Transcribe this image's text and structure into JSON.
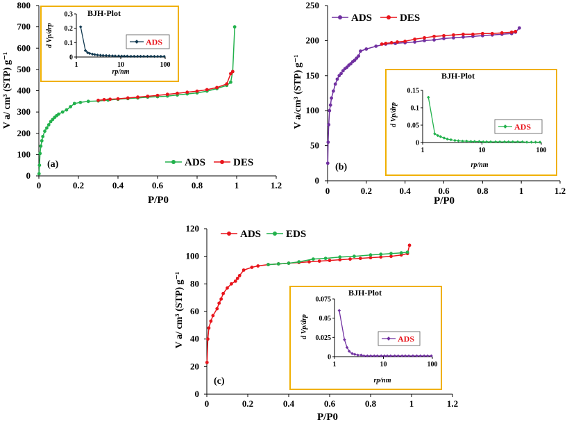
{
  "chart_data": [
    {
      "type": "line",
      "panel_label": "(a)",
      "xlabel": "P/P0",
      "ylabel": "V a/ cm³ (STP) g⁻¹",
      "xlim": [
        0,
        1.2
      ],
      "ylim": [
        0,
        800
      ],
      "xticks": [
        0,
        0.2,
        0.4,
        0.6,
        0.8,
        1,
        1.2
      ],
      "xtick_labels": [
        "0",
        "0.2",
        "0.4",
        "0.6",
        "0.8",
        "1",
        "1.2"
      ],
      "yticks": [
        0,
        100,
        200,
        300,
        400,
        500,
        600,
        700,
        800
      ],
      "legend_position": "bottom-right",
      "series": [
        {
          "name": "ADS",
          "color": "#22b14c",
          "marker": "circle",
          "x": [
            0.001,
            0.003,
            0.006,
            0.01,
            0.015,
            0.02,
            0.03,
            0.04,
            0.05,
            0.06,
            0.07,
            0.08,
            0.09,
            0.1,
            0.12,
            0.14,
            0.16,
            0.18,
            0.21,
            0.25,
            0.3,
            0.35,
            0.4,
            0.45,
            0.5,
            0.55,
            0.6,
            0.65,
            0.7,
            0.75,
            0.8,
            0.85,
            0.9,
            0.95,
            0.97,
            0.98,
            0.99
          ],
          "y": [
            10,
            50,
            105,
            140,
            165,
            185,
            210,
            225,
            240,
            255,
            265,
            275,
            283,
            290,
            300,
            310,
            325,
            340,
            345,
            350,
            352,
            356,
            360,
            363,
            366,
            370,
            372,
            375,
            380,
            385,
            390,
            398,
            410,
            425,
            440,
            490,
            700
          ]
        },
        {
          "name": "DES",
          "color": "#e8141b",
          "marker": "circle",
          "x": [
            0.3,
            0.33,
            0.36,
            0.4,
            0.45,
            0.5,
            0.55,
            0.6,
            0.65,
            0.7,
            0.75,
            0.8,
            0.85,
            0.9,
            0.95,
            0.97,
            0.98
          ],
          "y": [
            355,
            358,
            360,
            362,
            366,
            370,
            374,
            378,
            383,
            388,
            393,
            398,
            405,
            415,
            432,
            480,
            490
          ]
        }
      ],
      "inset": {
        "title": "BJH-Plot",
        "xlabel": "rp/nm",
        "ylabel": "d Vp/drp",
        "xscale": "log",
        "xlim": [
          1,
          100
        ],
        "xticks": [
          1,
          10,
          100
        ],
        "xtick_labels": [
          "1",
          "10",
          "100"
        ],
        "ylim": [
          0,
          0.3
        ],
        "yticks": [
          0,
          0.1,
          0.2,
          0.3
        ],
        "ytick_labels": [
          "0",
          "0.1",
          "0.2",
          "0.3"
        ],
        "series": [
          {
            "name": "ADS",
            "color": "#10384f",
            "x": [
              1.25,
              1.6,
              1.8,
              2,
              2.3,
              2.6,
              3,
              3.5,
              4,
              4.7,
              5.5,
              6.5,
              7.5,
              9,
              10.5,
              12,
              14,
              17,
              20,
              24,
              28,
              33,
              40,
              48,
              57,
              68,
              80,
              95
            ],
            "y": [
              0.21,
              0.045,
              0.03,
              0.025,
              0.02,
              0.017,
              0.014,
              0.012,
              0.011,
              0.01,
              0.009,
              0.008,
              0.007,
              0.007,
              0.006,
              0.006,
              0.006,
              0.005,
              0.005,
              0.005,
              0.005,
              0.005,
              0.005,
              0.005,
              0.004,
              0.004,
              0.004,
              0.004
            ]
          }
        ]
      }
    },
    {
      "type": "line",
      "panel_label": "(b)",
      "xlabel": "P/P0",
      "ylabel": "V a/cm³ (STP) g⁻¹",
      "xlim": [
        0,
        1.2
      ],
      "ylim": [
        0,
        250
      ],
      "xticks": [
        0,
        0.2,
        0.4,
        0.6,
        0.8,
        1,
        1.2
      ],
      "xtick_labels": [
        "0",
        "0.2",
        "0.4",
        "0.6",
        "0.8",
        "1",
        "1.2"
      ],
      "yticks": [
        0,
        50,
        100,
        150,
        200,
        250
      ],
      "legend_position": "top-left",
      "series": [
        {
          "name": "ADS",
          "color": "#7030a0",
          "marker": "circle",
          "x": [
            0.001,
            0.003,
            0.006,
            0.01,
            0.015,
            0.02,
            0.03,
            0.04,
            0.05,
            0.06,
            0.07,
            0.08,
            0.09,
            0.1,
            0.11,
            0.12,
            0.13,
            0.14,
            0.15,
            0.16,
            0.17,
            0.2,
            0.25,
            0.3,
            0.35,
            0.4,
            0.45,
            0.5,
            0.55,
            0.6,
            0.65,
            0.7,
            0.75,
            0.8,
            0.85,
            0.9,
            0.95,
            0.97,
            0.99
          ],
          "y": [
            25,
            55,
            80,
            100,
            108,
            118,
            128,
            138,
            145,
            150,
            153,
            157,
            160,
            162,
            165,
            167,
            170,
            172,
            175,
            178,
            185,
            188,
            192,
            195,
            196,
            197,
            198,
            200,
            201,
            203,
            204,
            205,
            206,
            207,
            208,
            209,
            210,
            212,
            218
          ]
        },
        {
          "name": "DES",
          "color": "#e8141b",
          "marker": "circle",
          "x": [
            0.28,
            0.3,
            0.33,
            0.36,
            0.4,
            0.45,
            0.5,
            0.55,
            0.6,
            0.65,
            0.7,
            0.75,
            0.8,
            0.85,
            0.9,
            0.95,
            0.97
          ],
          "y": [
            195,
            196,
            197,
            198,
            199,
            202,
            204,
            206,
            207,
            208,
            209,
            209,
            210,
            210,
            211,
            212,
            213
          ]
        }
      ],
      "inset": {
        "title": "BJH-Plot",
        "xlabel": "rp/nm",
        "ylabel": "d Vp/drp",
        "xscale": "log",
        "xlim": [
          1,
          100
        ],
        "xticks": [
          1,
          10,
          100
        ],
        "xtick_labels": [
          "1",
          "10",
          "100"
        ],
        "ylim": [
          0,
          0.15
        ],
        "yticks": [
          0,
          0.05,
          0.1,
          0.15
        ],
        "ytick_labels": [
          "0",
          "0.05",
          "0.1",
          "0.15"
        ],
        "series": [
          {
            "name": "ADS",
            "color": "#22b14c",
            "x": [
              1.25,
              1.6,
              1.8,
              2,
              2.3,
              2.6,
              3,
              3.5,
              4,
              4.7,
              5.5,
              6.5,
              7.5,
              9,
              10.5,
              12,
              14,
              17,
              20,
              24,
              28,
              33,
              40,
              48,
              57,
              68,
              80,
              95
            ],
            "y": [
              0.13,
              0.025,
              0.02,
              0.017,
              0.013,
              0.01,
              0.008,
              0.006,
              0.005,
              0.004,
              0.004,
              0.003,
              0.003,
              0.003,
              0.002,
              0.002,
              0.002,
              0.002,
              0.002,
              0.002,
              0.002,
              0.002,
              0.002,
              0.002,
              0.001,
              0.001,
              0.001,
              0.001
            ]
          }
        ]
      }
    },
    {
      "type": "line",
      "panel_label": "(c)",
      "xlabel": "P/P0",
      "ylabel": "V a/ cm³ (STP) g⁻¹",
      "xlim": [
        0,
        1.2
      ],
      "ylim": [
        0,
        120
      ],
      "xticks": [
        0,
        0.2,
        0.4,
        0.6,
        0.8,
        1,
        1.2
      ],
      "xtick_labels": [
        "0",
        "0.2",
        "0.4",
        "0.6",
        "0.8",
        "1",
        "1.2"
      ],
      "yticks": [
        0,
        20,
        40,
        60,
        80,
        100,
        120
      ],
      "legend_position": "top-left",
      "series": [
        {
          "name": "ADS",
          "color": "#e8141b",
          "marker": "circle",
          "x": [
            0.001,
            0.005,
            0.01,
            0.02,
            0.03,
            0.05,
            0.06,
            0.07,
            0.08,
            0.1,
            0.12,
            0.14,
            0.15,
            0.16,
            0.18,
            0.22,
            0.25,
            0.3,
            0.35,
            0.4,
            0.45,
            0.5,
            0.55,
            0.6,
            0.65,
            0.7,
            0.75,
            0.8,
            0.85,
            0.9,
            0.95,
            0.98,
            0.99
          ],
          "y": [
            23,
            40,
            48,
            53,
            57,
            62,
            66,
            69,
            73,
            77,
            80,
            82,
            84,
            86,
            90,
            92,
            93,
            94,
            94.5,
            95,
            95.5,
            96,
            96.5,
            97,
            97.5,
            98,
            98.5,
            99,
            99.5,
            100,
            101,
            102,
            108
          ]
        },
        {
          "name": "EDS",
          "color": "#22b14c",
          "marker": "circle",
          "x": [
            0.3,
            0.35,
            0.4,
            0.45,
            0.52,
            0.58,
            0.65,
            0.72,
            0.8,
            0.85,
            0.9,
            0.95,
            0.98
          ],
          "y": [
            94,
            94.5,
            95,
            96,
            98,
            98.5,
            99.5,
            100,
            101,
            101.5,
            102,
            102.5,
            103
          ]
        }
      ],
      "inset": {
        "title": "BJH-Plot",
        "xlabel": "rp/nm",
        "ylabel": "d Vp/drp",
        "xscale": "log",
        "xlim": [
          1,
          100
        ],
        "xticks": [
          1,
          10,
          100
        ],
        "xtick_labels": [
          "1",
          "10",
          "100"
        ],
        "ylim": [
          0,
          0.075
        ],
        "yticks": [
          0,
          0.025,
          0.05,
          0.075
        ],
        "ytick_labels": [
          "0",
          "0.025",
          "0.05",
          "0.075"
        ],
        "series": [
          {
            "name": "ADS",
            "color": "#7030a0",
            "x": [
              1.25,
              1.6,
              1.8,
              2,
              2.3,
              2.6,
              3,
              3.5,
              4,
              4.7,
              5.5,
              6.5,
              7.5,
              9,
              10.5,
              12,
              14,
              17,
              20,
              24,
              28,
              33,
              40,
              48,
              57,
              68,
              80,
              95
            ],
            "y": [
              0.06,
              0.022,
              0.012,
              0.007,
              0.004,
              0.003,
              0.002,
              0.002,
              0.001,
              0.001,
              0.001,
              0.001,
              0.001,
              0.001,
              0.001,
              0.001,
              0.001,
              0.001,
              0.001,
              0.001,
              0.001,
              0.001,
              0.001,
              0.001,
              0.001,
              0.001,
              0.001,
              0.001
            ]
          }
        ]
      }
    }
  ]
}
